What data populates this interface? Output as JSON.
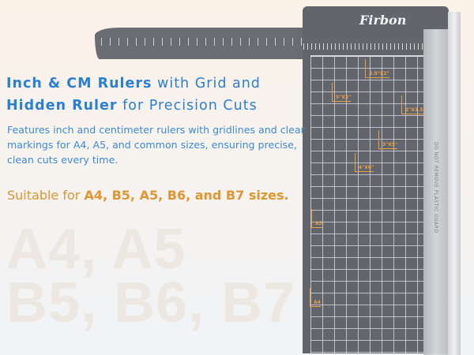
{
  "watermark": {
    "line1": "A4, A5",
    "line2": "B5, B6, B7"
  },
  "headline": {
    "line1_bold": "Inch & CM Rulers",
    "line1_rest": " with Grid and",
    "line2_bold": "Hidden Ruler",
    "line2_rest": " for Precision Cuts"
  },
  "description": "Features inch and centimeter rulers with gridlines and clear markings for A4, A5, and common sizes, ensuring precise, clean cuts every time.",
  "suitable": {
    "prefix": "Suitable for ",
    "sizes": "A4, B5, A5, B6, and B7 sizes."
  },
  "product": {
    "brand": "Firbon",
    "guard_text": "DO NOT REMOVE PLASTIC GUARD",
    "size_labels": [
      "3.5\"X2\"",
      "5\"X3\"",
      "2\"X3.5\"",
      "3\"X5\"",
      "4\"X6\"",
      "A5",
      "A4"
    ]
  },
  "colors": {
    "headline": "#2a7fd8",
    "accent": "#e29530",
    "board": "#63656d"
  }
}
